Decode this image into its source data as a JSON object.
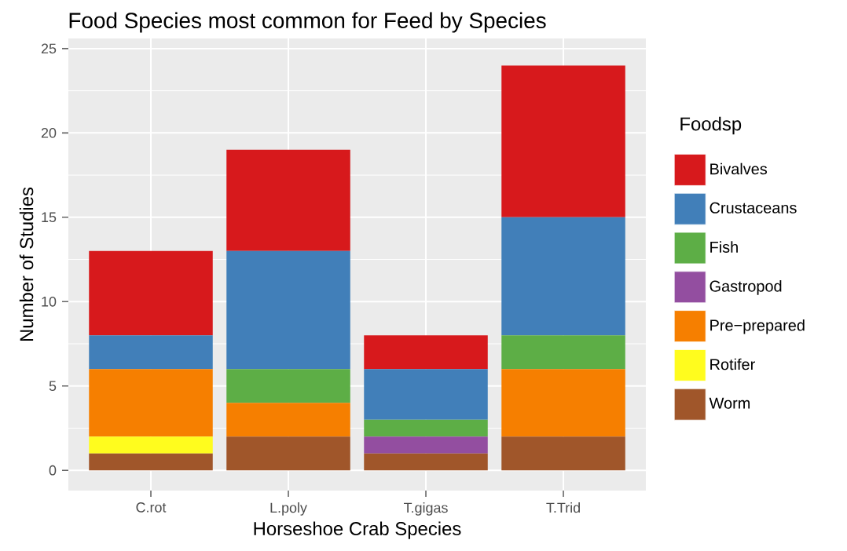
{
  "chart_data": {
    "type": "bar",
    "stacked": true,
    "title": "Food Species most common for Feed by Species",
    "xlabel": "Horseshoe Crab Species",
    "ylabel": "Number of Studies",
    "legend_title": "Foodsp",
    "legend": "right",
    "grid": true,
    "categories": [
      "C.rot",
      "L.poly",
      "T.gigas",
      "T.Trid"
    ],
    "ylim": [
      -1.2,
      25.6
    ],
    "yticks": [
      0,
      5,
      10,
      15,
      20,
      25
    ],
    "series": [
      {
        "name": "Worm",
        "color": "#a0562a",
        "values": [
          1,
          2,
          1,
          2
        ]
      },
      {
        "name": "Rotifer",
        "color": "#fffc1e",
        "values": [
          1,
          0,
          0,
          0
        ]
      },
      {
        "name": "Pre−prepared",
        "color": "#f67f00",
        "values": [
          4,
          2,
          0,
          4
        ]
      },
      {
        "name": "Gastropod",
        "color": "#934ea0",
        "values": [
          0,
          0,
          1,
          0
        ]
      },
      {
        "name": "Fish",
        "color": "#5dae46",
        "values": [
          0,
          2,
          1,
          2
        ]
      },
      {
        "name": "Crustaceans",
        "color": "#417fb9",
        "values": [
          2,
          7,
          3,
          7
        ]
      },
      {
        "name": "Bivalves",
        "color": "#d7191c",
        "values": [
          5,
          6,
          2,
          9
        ]
      }
    ]
  }
}
